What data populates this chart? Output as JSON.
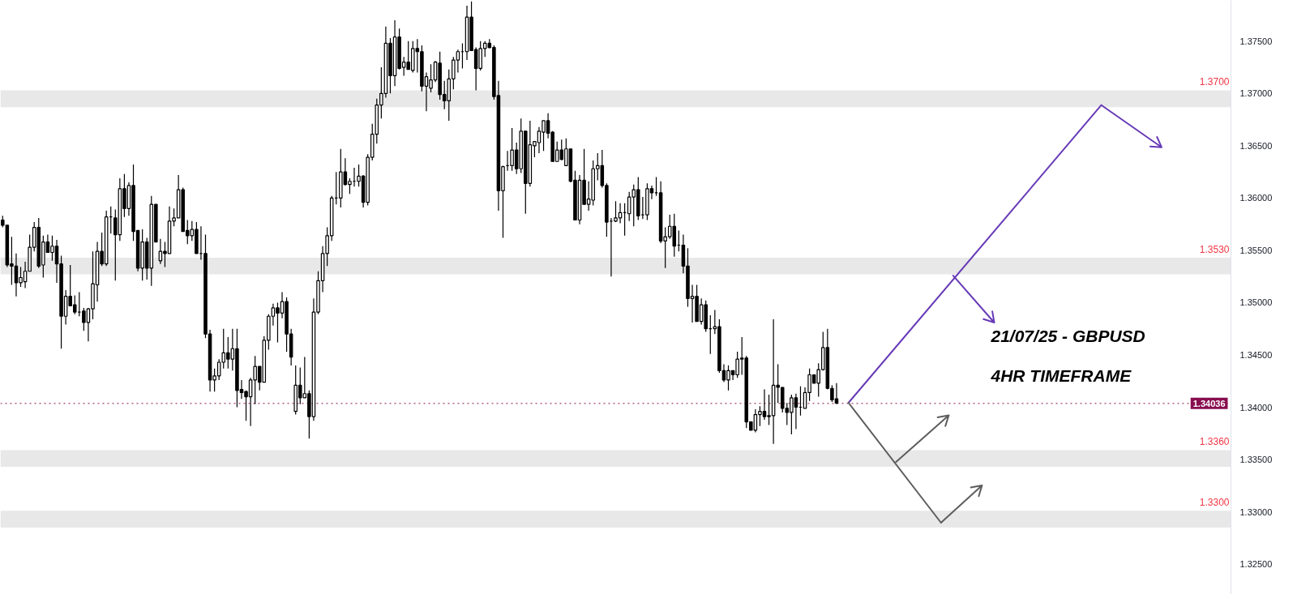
{
  "chart_data": {
    "type": "candlestick",
    "title": "21/07/25 - GBPUSD",
    "subtitle": "4HR TIMEFRAME",
    "categories": [
      null,
      null,
      null,
      null,
      null,
      null,
      null,
      null,
      null,
      null,
      null,
      null,
      null,
      null,
      null,
      null,
      null,
      null,
      null,
      null,
      null,
      null,
      null,
      null,
      null,
      null,
      null,
      null,
      null,
      null,
      null,
      null,
      null,
      null,
      null,
      null,
      null,
      null,
      null,
      null,
      null,
      null,
      null,
      null,
      null,
      null,
      null,
      null,
      null,
      null,
      null,
      null,
      null,
      null,
      null,
      null,
      null,
      null,
      null,
      null,
      null,
      null,
      null,
      null,
      null,
      null,
      null,
      null,
      null,
      null,
      null,
      null,
      null,
      null,
      null,
      null,
      null,
      null,
      null,
      null,
      null,
      null,
      null,
      null,
      null,
      null,
      null,
      null,
      null,
      null,
      null,
      null,
      null,
      null,
      null,
      null,
      null,
      null,
      null,
      null,
      null,
      null,
      null,
      null,
      null,
      null,
      null,
      null,
      null,
      null,
      null,
      null,
      null,
      null,
      null,
      null,
      null,
      null,
      null,
      null,
      null,
      null,
      null,
      null,
      null,
      null,
      null,
      null,
      null,
      null,
      null,
      null,
      null,
      null,
      null,
      null,
      null,
      null,
      null,
      null,
      null,
      null,
      null,
      null,
      null,
      null,
      null,
      null,
      null,
      null,
      null,
      null,
      null,
      null,
      null,
      null,
      null,
      null,
      null,
      null,
      null,
      null,
      null,
      null,
      null,
      null,
      null,
      null,
      null,
      null,
      null,
      null,
      null,
      null,
      null,
      null,
      null,
      null,
      null,
      null,
      null,
      null,
      null,
      null,
      null,
      null,
      null,
      null,
      null,
      null,
      null,
      null,
      null,
      null,
      null,
      null,
      null,
      null,
      null,
      null,
      null,
      null,
      null,
      null,
      null,
      null,
      null,
      null,
      null,
      null,
      null,
      null,
      null,
      null,
      null,
      null,
      null,
      null,
      null,
      null,
      null,
      null,
      null,
      null,
      null,
      null,
      null,
      null,
      null,
      null,
      null,
      null,
      null,
      null,
      null,
      null,
      null,
      null,
      null,
      null,
      null,
      null,
      null,
      null,
      null,
      null,
      null,
      null,
      null,
      null,
      null,
      null,
      null,
      null,
      null,
      null,
      null,
      null,
      null,
      null,
      null,
      null,
      null,
      null,
      null,
      null,
      null,
      null,
      null,
      null,
      null,
      null,
      null
    ],
    "ohlc": [
      [
        1.3579,
        1.3583,
        1.3572,
        1.3574
      ],
      [
        1.3574,
        1.3574,
        1.3534,
        1.3536
      ],
      [
        1.3537,
        1.3563,
        1.3517,
        1.3535
      ],
      [
        1.3535,
        1.3547,
        1.3506,
        1.3519
      ],
      [
        1.3519,
        1.3534,
        1.3515,
        1.3524
      ],
      [
        1.352,
        1.3539,
        1.3514,
        1.353
      ],
      [
        1.353,
        1.3565,
        1.353,
        1.3553
      ],
      [
        1.3553,
        1.3577,
        1.3549,
        1.3572
      ],
      [
        1.3572,
        1.3581,
        1.3533,
        1.3535
      ],
      [
        1.3536,
        1.3564,
        1.3524,
        1.3558
      ],
      [
        1.3558,
        1.3565,
        1.3548,
        1.3548
      ],
      [
        1.3548,
        1.3564,
        1.354,
        1.3554
      ],
      [
        1.3554,
        1.356,
        1.3519,
        1.3537
      ],
      [
        1.3537,
        1.3545,
        1.3456,
        1.3487
      ],
      [
        1.3487,
        1.3512,
        1.3479,
        1.3506
      ],
      [
        1.3506,
        1.3536,
        1.3497,
        1.3497
      ],
      [
        1.3498,
        1.3507,
        1.3489,
        1.3491
      ],
      [
        1.3491,
        1.351,
        1.3487,
        1.3491
      ],
      [
        1.3492,
        1.3495,
        1.3473,
        1.3481
      ],
      [
        1.3481,
        1.3495,
        1.3463,
        1.3494
      ],
      [
        1.3494,
        1.3549,
        1.3484,
        1.3518
      ],
      [
        1.3517,
        1.3558,
        1.3501,
        1.3549
      ],
      [
        1.3549,
        1.3567,
        1.3535,
        1.3537
      ],
      [
        1.3537,
        1.3588,
        1.3535,
        1.3582
      ],
      [
        1.3582,
        1.3592,
        1.3566,
        1.3582
      ],
      [
        1.3581,
        1.3589,
        1.3521,
        1.3565
      ],
      [
        1.3565,
        1.3619,
        1.3559,
        1.3609
      ],
      [
        1.3609,
        1.3623,
        1.3582,
        1.359
      ],
      [
        1.359,
        1.3615,
        1.3583,
        1.3612
      ],
      [
        1.3612,
        1.3632,
        1.3559,
        1.3568
      ],
      [
        1.3569,
        1.3569,
        1.353,
        1.3533
      ],
      [
        1.3533,
        1.357,
        1.3521,
        1.3558
      ],
      [
        1.3558,
        1.3562,
        1.3522,
        1.3533
      ],
      [
        1.3533,
        1.3602,
        1.3516,
        1.3594
      ],
      [
        1.3594,
        1.3594,
        1.3558,
        1.3558
      ],
      [
        1.354,
        1.3561,
        1.3537,
        1.3549
      ],
      [
        1.3549,
        1.3558,
        1.3534,
        1.3547
      ],
      [
        1.3547,
        1.3592,
        1.3547,
        1.3578
      ],
      [
        1.3578,
        1.359,
        1.3573,
        1.3581
      ],
      [
        1.3581,
        1.3622,
        1.3581,
        1.3608
      ],
      [
        1.3608,
        1.361,
        1.3568,
        1.3568
      ],
      [
        1.3569,
        1.3579,
        1.3556,
        1.3564
      ],
      [
        1.3564,
        1.3578,
        1.3559,
        1.357
      ],
      [
        1.357,
        1.3577,
        1.3547,
        1.3547
      ],
      [
        1.3547,
        1.3573,
        1.3541,
        1.3547
      ],
      [
        1.3547,
        1.3565,
        1.3466,
        1.347
      ],
      [
        1.347,
        1.3474,
        1.3415,
        1.3426
      ],
      [
        1.3426,
        1.3437,
        1.3415,
        1.343
      ],
      [
        1.343,
        1.3446,
        1.3426,
        1.3443
      ],
      [
        1.3443,
        1.3475,
        1.3437,
        1.3452
      ],
      [
        1.3452,
        1.3467,
        1.3437,
        1.3446
      ],
      [
        1.3446,
        1.3475,
        1.3435,
        1.3456
      ],
      [
        1.3456,
        1.3475,
        1.34,
        1.3416
      ],
      [
        1.3417,
        1.3426,
        1.3408,
        1.3414
      ],
      [
        1.3415,
        1.3416,
        1.3387,
        1.341
      ],
      [
        1.341,
        1.3428,
        1.3382,
        1.3426
      ],
      [
        1.3426,
        1.3449,
        1.3403,
        1.3439
      ],
      [
        1.3439,
        1.3439,
        1.3416,
        1.3424
      ],
      [
        1.3424,
        1.3468,
        1.3424,
        1.3464
      ],
      [
        1.3464,
        1.3489,
        1.3455,
        1.3487
      ],
      [
        1.3487,
        1.3499,
        1.3478,
        1.3495
      ],
      [
        1.3495,
        1.35,
        1.3462,
        1.349
      ],
      [
        1.349,
        1.351,
        1.3485,
        1.3501
      ],
      [
        1.3501,
        1.3505,
        1.3453,
        1.347
      ],
      [
        1.347,
        1.3475,
        1.344,
        1.3448
      ],
      [
        1.3396,
        1.344,
        1.3393,
        1.3421
      ],
      [
        1.3421,
        1.3438,
        1.3403,
        1.3409
      ],
      [
        1.3409,
        1.3448,
        1.3409,
        1.3413
      ],
      [
        1.3413,
        1.3416,
        1.337,
        1.3391
      ],
      [
        1.3391,
        1.3504,
        1.3387,
        1.3491
      ],
      [
        1.3491,
        1.353,
        1.3489,
        1.3521
      ],
      [
        1.3521,
        1.3554,
        1.351,
        1.3547
      ],
      [
        1.3547,
        1.3572,
        1.3535,
        1.3564
      ],
      [
        1.3564,
        1.3602,
        1.3559,
        1.36
      ],
      [
        1.36,
        1.3625,
        1.3594,
        1.36
      ],
      [
        1.36,
        1.3647,
        1.3591,
        1.3625
      ],
      [
        1.3625,
        1.3638,
        1.3612,
        1.3613
      ],
      [
        1.3613,
        1.3619,
        1.3604,
        1.3616
      ],
      [
        1.3616,
        1.3629,
        1.3611,
        1.3616
      ],
      [
        1.3616,
        1.3632,
        1.3611,
        1.3621
      ],
      [
        1.3621,
        1.3622,
        1.3591,
        1.3596
      ],
      [
        1.3596,
        1.3642,
        1.3593,
        1.3639
      ],
      [
        1.3639,
        1.3671,
        1.3636,
        1.3661
      ],
      [
        1.3661,
        1.3695,
        1.3652,
        1.3689
      ],
      [
        1.3689,
        1.3725,
        1.3676,
        1.37
      ],
      [
        1.37,
        1.3764,
        1.3696,
        1.3748
      ],
      [
        1.3748,
        1.3753,
        1.37,
        1.3717
      ],
      [
        1.3717,
        1.377,
        1.3707,
        1.3754
      ],
      [
        1.3754,
        1.3762,
        1.3723,
        1.3724
      ],
      [
        1.3725,
        1.3735,
        1.3717,
        1.373
      ],
      [
        1.373,
        1.375,
        1.3723,
        1.3723
      ],
      [
        1.3722,
        1.375,
        1.372,
        1.3743
      ],
      [
        1.3743,
        1.3752,
        1.372,
        1.374
      ],
      [
        1.374,
        1.3746,
        1.3702,
        1.3707
      ],
      [
        1.3707,
        1.372,
        1.3683,
        1.3716
      ],
      [
        1.3705,
        1.3728,
        1.3701,
        1.3713
      ],
      [
        1.3713,
        1.3731,
        1.3711,
        1.373
      ],
      [
        1.3729,
        1.374,
        1.3694,
        1.3699
      ],
      [
        1.3699,
        1.3712,
        1.3685,
        1.3693
      ],
      [
        1.3693,
        1.3723,
        1.3674,
        1.3714
      ],
      [
        1.3714,
        1.3735,
        1.3704,
        1.3732
      ],
      [
        1.3732,
        1.3742,
        1.372,
        1.374
      ],
      [
        1.374,
        1.3748,
        1.3724,
        1.374
      ],
      [
        1.374,
        1.3784,
        1.3732,
        1.3773
      ],
      [
        1.3773,
        1.3788,
        1.3741,
        1.3741
      ],
      [
        1.3742,
        1.3744,
        1.3703,
        1.3724
      ],
      [
        1.3724,
        1.375,
        1.3722,
        1.3743
      ],
      [
        1.3743,
        1.375,
        1.3735,
        1.3748
      ],
      [
        1.3748,
        1.3752,
        1.3743,
        1.3744
      ],
      [
        1.3744,
        1.3746,
        1.3694,
        1.3697
      ],
      [
        1.3698,
        1.3712,
        1.3588,
        1.3607
      ],
      [
        1.3607,
        1.3631,
        1.3562,
        1.363
      ],
      [
        1.3631,
        1.3645,
        1.3626,
        1.3631
      ],
      [
        1.3631,
        1.3667,
        1.3626,
        1.3646
      ],
      [
        1.3646,
        1.3653,
        1.3623,
        1.3628
      ],
      [
        1.3628,
        1.3676,
        1.3624,
        1.3664
      ],
      [
        1.3664,
        1.3664,
        1.3585,
        1.3614
      ],
      [
        1.3614,
        1.3674,
        1.3611,
        1.3651
      ],
      [
        1.365,
        1.3654,
        1.3639,
        1.3654
      ],
      [
        1.3653,
        1.3668,
        1.3643,
        1.3664
      ],
      [
        1.3663,
        1.3674,
        1.3645,
        1.3674
      ],
      [
        1.3674,
        1.3681,
        1.3657,
        1.3662
      ],
      [
        1.3663,
        1.3664,
        1.3635,
        1.3635
      ],
      [
        1.3635,
        1.3654,
        1.3635,
        1.3646
      ],
      [
        1.3646,
        1.3656,
        1.3636,
        1.3637
      ],
      [
        1.3631,
        1.3657,
        1.3631,
        1.3647
      ],
      [
        1.3647,
        1.3647,
        1.3615,
        1.3616
      ],
      [
        1.3617,
        1.3626,
        1.3579,
        1.3579
      ],
      [
        1.3579,
        1.3622,
        1.3575,
        1.3617
      ],
      [
        1.3617,
        1.3647,
        1.3594,
        1.3594
      ],
      [
        1.3594,
        1.3616,
        1.3588,
        1.3599
      ],
      [
        1.3598,
        1.3636,
        1.3593,
        1.3628
      ],
      [
        1.3628,
        1.3643,
        1.3617,
        1.3631
      ],
      [
        1.3631,
        1.3646,
        1.361,
        1.3612
      ],
      [
        1.3612,
        1.3614,
        1.3563,
        1.3577
      ],
      [
        1.3578,
        1.3581,
        1.3525,
        1.3578
      ],
      [
        1.3578,
        1.3597,
        1.3577,
        1.3581
      ],
      [
        1.3581,
        1.3595,
        1.3576,
        1.3586
      ],
      [
        1.3586,
        1.3595,
        1.3564,
        1.3586
      ],
      [
        1.3585,
        1.3606,
        1.3578,
        1.3601
      ],
      [
        1.3601,
        1.3613,
        1.3573,
        1.3608
      ],
      [
        1.3608,
        1.362,
        1.3579,
        1.3583
      ],
      [
        1.3584,
        1.3601,
        1.358,
        1.3584
      ],
      [
        1.3584,
        1.3614,
        1.3579,
        1.3609
      ],
      [
        1.3609,
        1.3612,
        1.3599,
        1.3605
      ],
      [
        1.3605,
        1.362,
        1.3602,
        1.3605
      ],
      [
        1.3605,
        1.3616,
        1.3557,
        1.3559
      ],
      [
        1.3559,
        1.3572,
        1.3533,
        1.3563
      ],
      [
        1.3563,
        1.3584,
        1.3561,
        1.3573
      ],
      [
        1.3573,
        1.3585,
        1.3544,
        1.3554
      ],
      [
        1.3555,
        1.3569,
        1.3549,
        1.3555
      ],
      [
        1.3555,
        1.3565,
        1.3528,
        1.3535
      ],
      [
        1.3535,
        1.3552,
        1.3496,
        1.3504
      ],
      [
        1.3504,
        1.3517,
        1.3481,
        1.3506
      ],
      [
        1.3506,
        1.3517,
        1.3482,
        1.3482
      ],
      [
        1.3482,
        1.3504,
        1.3479,
        1.3498
      ],
      [
        1.3498,
        1.3502,
        1.3472,
        1.3475
      ],
      [
        1.3475,
        1.3488,
        1.3451,
        1.3475
      ],
      [
        1.3475,
        1.3493,
        1.347,
        1.3477
      ],
      [
        1.3477,
        1.3484,
        1.3433,
        1.3435
      ],
      [
        1.3435,
        1.3441,
        1.3424,
        1.3426
      ],
      [
        1.3426,
        1.344,
        1.3416,
        1.3435
      ],
      [
        1.3435,
        1.3435,
        1.3426,
        1.3431
      ],
      [
        1.3431,
        1.3453,
        1.3428,
        1.3446
      ],
      [
        1.3446,
        1.3467,
        1.3431,
        1.3447
      ],
      [
        1.3447,
        1.3449,
        1.338,
        1.3386
      ],
      [
        1.3386,
        1.3386,
        1.3378,
        1.3378
      ],
      [
        1.3378,
        1.3398,
        1.3376,
        1.3393
      ],
      [
        1.3393,
        1.3401,
        1.3382,
        1.3396
      ],
      [
        1.3396,
        1.3417,
        1.3388,
        1.3391
      ],
      [
        1.3391,
        1.3412,
        1.3383,
        1.3392
      ],
      [
        1.3392,
        1.3484,
        1.3365,
        1.3421
      ],
      [
        1.3421,
        1.3441,
        1.3404,
        1.3419
      ],
      [
        1.3419,
        1.3419,
        1.3395,
        1.3399
      ],
      [
        1.3399,
        1.3404,
        1.3383,
        1.3395
      ],
      [
        1.3395,
        1.3412,
        1.3374,
        1.3409
      ],
      [
        1.3409,
        1.3413,
        1.3379,
        1.34
      ],
      [
        1.34,
        1.342,
        1.3392,
        1.34
      ],
      [
        1.3399,
        1.3419,
        1.3399,
        1.3414
      ],
      [
        1.3414,
        1.3437,
        1.3406,
        1.3431
      ],
      [
        1.3431,
        1.3431,
        1.3423,
        1.3423
      ],
      [
        1.3423,
        1.3442,
        1.341,
        1.3436
      ],
      [
        1.3436,
        1.3472,
        1.3435,
        1.3457
      ],
      [
        1.3457,
        1.3475,
        1.3417,
        1.3418
      ],
      [
        1.3418,
        1.3421,
        1.3405,
        1.3407
      ],
      [
        1.3408,
        1.3423,
        1.3403,
        1.3404
      ],
      null,
      null,
      null,
      null,
      null,
      null,
      null,
      null,
      null,
      null,
      null,
      null,
      null,
      null,
      null,
      null,
      null,
      null,
      null,
      null,
      null,
      null,
      null,
      null,
      null,
      null,
      null,
      null,
      null,
      null,
      null,
      null,
      null,
      null,
      null,
      null,
      null,
      null,
      null,
      null,
      null,
      null,
      null,
      null,
      null,
      null,
      null,
      null,
      null,
      null,
      null,
      null,
      null,
      null,
      null,
      null,
      null,
      null,
      null,
      null,
      null,
      null,
      null,
      null,
      null,
      null,
      null,
      null,
      null,
      null,
      null,
      null,
      null,
      null,
      null,
      null,
      null,
      null,
      null,
      null,
      null,
      null,
      null,
      null,
      null,
      null,
      null
    ],
    "ylim": [
      1.3221,
      1.3789
    ],
    "yticks": [
      {
        "value": 1.325,
        "label": "1.32500"
      },
      {
        "value": 1.33,
        "label": "1.33000"
      },
      {
        "value": 1.335,
        "label": "1.33500"
      },
      {
        "value": 1.34,
        "label": "1.34000"
      },
      {
        "value": 1.345,
        "label": "1.34500"
      },
      {
        "value": 1.35,
        "label": "1.35000"
      },
      {
        "value": 1.355,
        "label": "1.35500"
      },
      {
        "value": 1.36,
        "label": "1.36000"
      },
      {
        "value": 1.365,
        "label": "1.36500"
      },
      {
        "value": 1.37,
        "label": "1.37000"
      },
      {
        "value": 1.375,
        "label": "1.37500"
      }
    ],
    "tick_labels": "y",
    "bands": [
      {
        "axis": "y",
        "from": 1.3687,
        "to": 1.3703,
        "label": "1.3700",
        "color": "#e8e8e8"
      },
      {
        "axis": "y",
        "from": 1.3527,
        "to": 1.3543,
        "label": "1.3530",
        "color": "#e8e8e8"
      },
      {
        "axis": "y",
        "from": 1.3343,
        "to": 1.3359,
        "label": "1.3360",
        "color": "#e8e8e8"
      },
      {
        "axis": "y",
        "from": 1.3285,
        "to": 1.3301,
        "label": "1.3300",
        "color": "#e8e8e8"
      }
    ],
    "ref_lines": [
      {
        "axis": "y",
        "value": 1.34036,
        "label": "1.34036",
        "color": "#880e4f",
        "line_style": "dotted"
      }
    ]
  }
}
